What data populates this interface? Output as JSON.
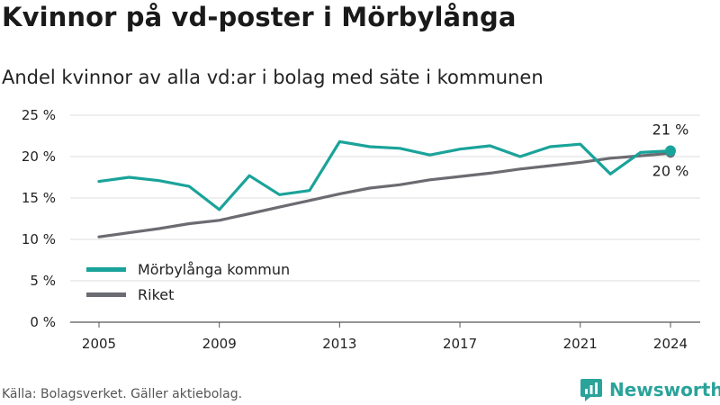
{
  "title": "Kvinnor på vd-poster i Mörbylånga",
  "subtitle": "Andel kvinnor av alla vd:ar i bolag med säte i kommunen",
  "footer": "Källa: Bolagsverket. Gäller aktiebolag.",
  "brand": "Newsworthy",
  "chart_data": {
    "type": "line",
    "x": [
      2005,
      2006,
      2007,
      2008,
      2009,
      2010,
      2011,
      2012,
      2013,
      2014,
      2015,
      2016,
      2017,
      2018,
      2019,
      2020,
      2021,
      2022,
      2023,
      2024
    ],
    "series": [
      {
        "name": "Mörbylånga kommun",
        "color": "#1aa39a",
        "values": [
          17.0,
          17.5,
          17.1,
          16.4,
          13.6,
          17.7,
          15.4,
          15.9,
          21.8,
          21.2,
          21.0,
          20.2,
          20.9,
          21.3,
          20.0,
          21.2,
          21.5,
          17.9,
          20.5,
          20.7
        ],
        "end_label": "21 %"
      },
      {
        "name": "Riket",
        "color": "#6b6b72",
        "values": [
          10.3,
          10.8,
          11.3,
          11.9,
          12.3,
          13.1,
          13.9,
          14.7,
          15.5,
          16.2,
          16.6,
          17.2,
          17.6,
          18.0,
          18.5,
          18.9,
          19.3,
          19.8,
          20.1,
          20.4
        ],
        "end_label": "20 %"
      }
    ],
    "y_ticks": [
      "0 %",
      "5 %",
      "10 %",
      "15 %",
      "20 %",
      "25 %"
    ],
    "y_tick_values": [
      0,
      5,
      10,
      15,
      20,
      25
    ],
    "x_ticks": [
      "2005",
      "2009",
      "2013",
      "2017",
      "2021",
      "2024"
    ],
    "x_tick_values": [
      2005,
      2009,
      2013,
      2017,
      2021,
      2024
    ],
    "ylim": [
      0,
      25
    ],
    "xlim": [
      2005,
      2024
    ],
    "grid": true,
    "legend_position": "bottom-left"
  }
}
